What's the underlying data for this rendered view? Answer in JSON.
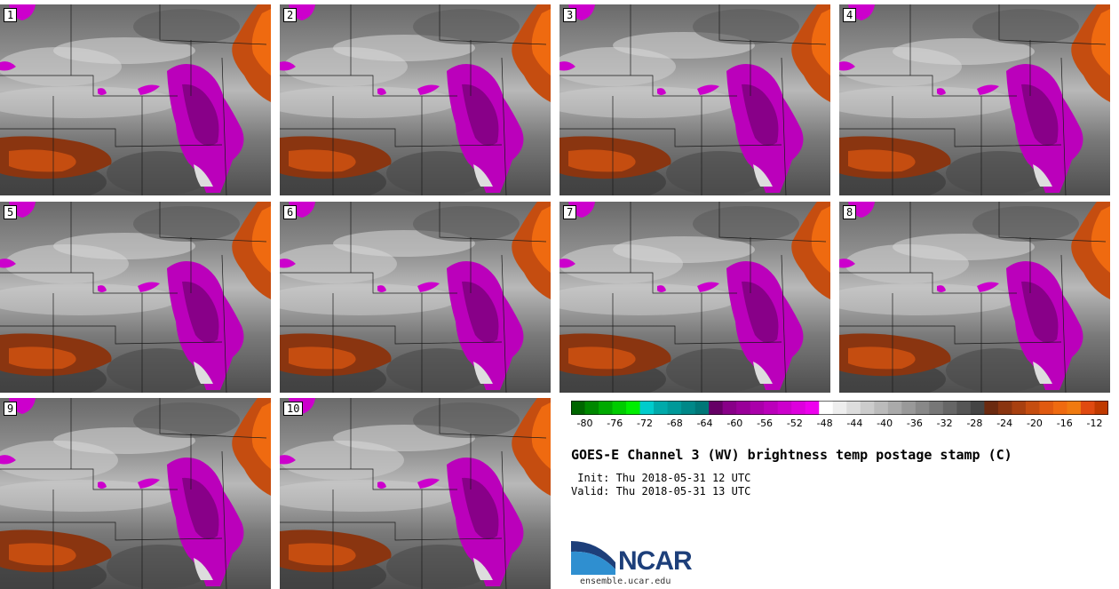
{
  "panels": [
    {
      "label": "1"
    },
    {
      "label": "2"
    },
    {
      "label": "3"
    },
    {
      "label": "4"
    },
    {
      "label": "5"
    },
    {
      "label": "6"
    },
    {
      "label": "7"
    },
    {
      "label": "8"
    },
    {
      "label": "9"
    },
    {
      "label": "10"
    }
  ],
  "colorbar": {
    "ticks": [
      "-80",
      "-76",
      "-72",
      "-68",
      "-64",
      "-60",
      "-56",
      "-52",
      "-48",
      "-44",
      "-40",
      "-36",
      "-32",
      "-28",
      "-24",
      "-20",
      "-16",
      "-12"
    ],
    "colors": [
      "#006600",
      "#008800",
      "#00aa00",
      "#00cc00",
      "#00ee00",
      "#00cccc",
      "#00aaaa",
      "#009999",
      "#008888",
      "#007777",
      "#660066",
      "#880088",
      "#990099",
      "#aa00aa",
      "#bb00bb",
      "#cc00cc",
      "#dd00dd",
      "#ee00ee",
      "#ffffff",
      "#eeeeee",
      "#dddddd",
      "#cccccc",
      "#bbbbbb",
      "#aaaaaa",
      "#999999",
      "#888888",
      "#777777",
      "#666666",
      "#555555",
      "#444444",
      "#6b2a10",
      "#8a3510",
      "#a84010",
      "#c54d10",
      "#e05a10",
      "#ef6a10",
      "#f07a10",
      "#e04a10",
      "#c03a00"
    ]
  },
  "title": "GOES-E Channel 3 (WV) brightness temp postage stamp (C)",
  "init_line": " Init: Thu 2018-05-31 12 UTC",
  "valid_line": "Valid: Thu 2018-05-31 13 UTC",
  "logo": {
    "name": "NCAR",
    "url": "ensemble.ucar.edu"
  }
}
